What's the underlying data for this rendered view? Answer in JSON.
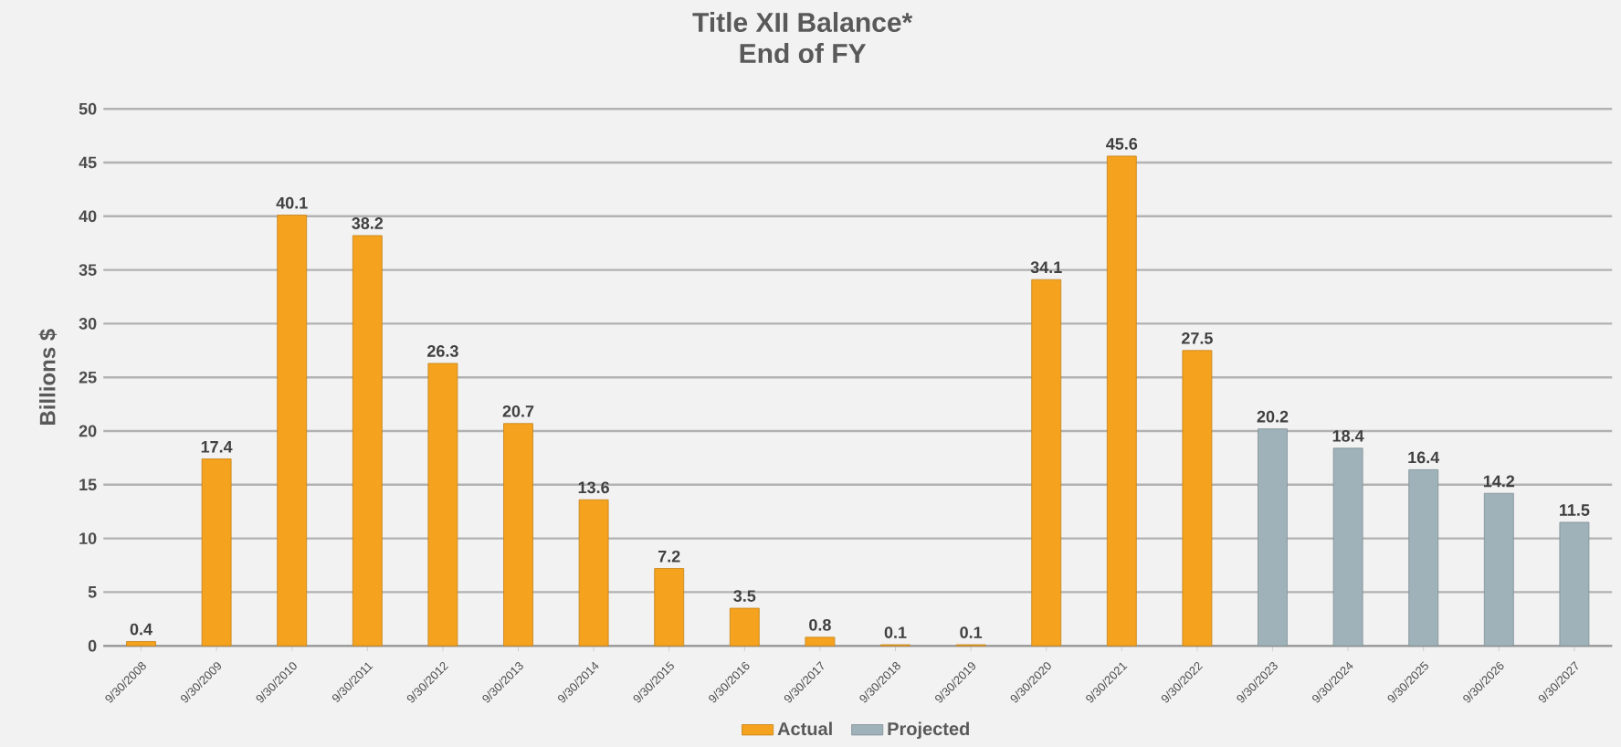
{
  "chart_data": {
    "type": "bar",
    "title": "Title XII Balance*",
    "subtitle": "End of FY",
    "ylabel": "Billions $",
    "categories": [
      "9/30/2008",
      "9/30/2009",
      "9/30/2010",
      "9/30/2011",
      "9/30/2012",
      "9/30/2013",
      "9/30/2014",
      "9/30/2015",
      "9/30/2016",
      "9/30/2017",
      "9/30/2018",
      "9/30/2019",
      "9/30/2020",
      "9/30/2021",
      "9/30/2022",
      "9/30/2023",
      "9/30/2024",
      "9/30/2025",
      "9/30/2026",
      "9/30/2027"
    ],
    "series": [
      {
        "name": "Actual",
        "color": "#f5a21e",
        "values": [
          0.4,
          17.4,
          40.1,
          38.2,
          26.3,
          20.7,
          13.6,
          7.2,
          3.5,
          0.8,
          0.1,
          0.1,
          34.1,
          45.6,
          27.5,
          null,
          null,
          null,
          null,
          null
        ]
      },
      {
        "name": "Projected",
        "color": "#9fb2b9",
        "values": [
          null,
          null,
          null,
          null,
          null,
          null,
          null,
          null,
          null,
          null,
          null,
          null,
          null,
          null,
          null,
          20.2,
          18.4,
          16.4,
          14.2,
          11.5
        ]
      }
    ],
    "ylim": [
      0,
      50
    ],
    "yticks": [
      0,
      5,
      10,
      15,
      20,
      25,
      30,
      35,
      40,
      45,
      50
    ],
    "grid": "y",
    "legend": "bottom",
    "data_labels": true
  }
}
